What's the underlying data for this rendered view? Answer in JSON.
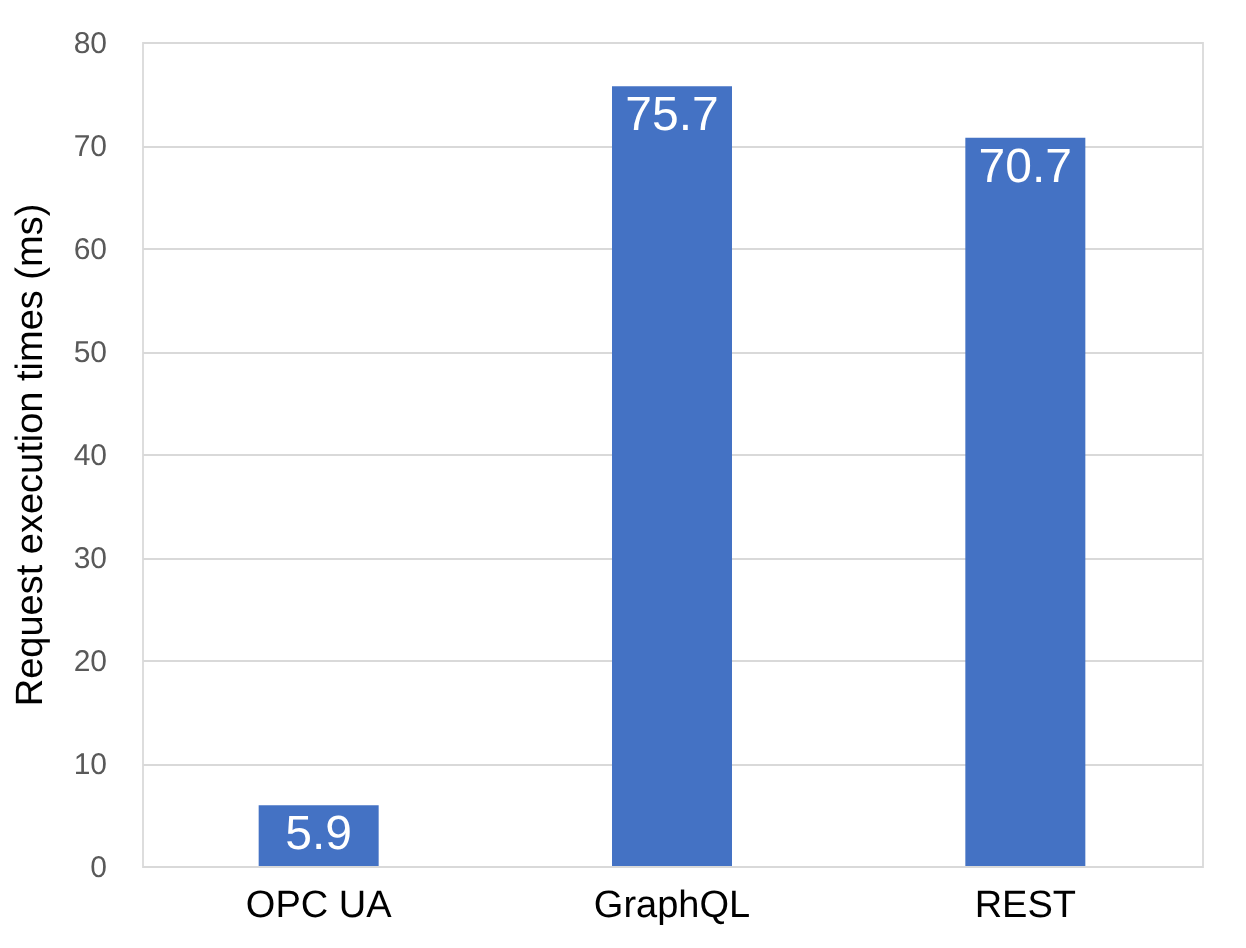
{
  "chart_data": {
    "type": "bar",
    "ylabel": "Request execution times (ms)",
    "categories": [
      "OPC UA",
      "GraphQL",
      "REST"
    ],
    "values": [
      5.9,
      75.7,
      70.7
    ],
    "color": "#4472c4",
    "ylim": [
      0,
      80
    ],
    "yticks": [
      0,
      10,
      20,
      30,
      40,
      50,
      60,
      70,
      80
    ],
    "grid": "y",
    "data_labels": true
  }
}
